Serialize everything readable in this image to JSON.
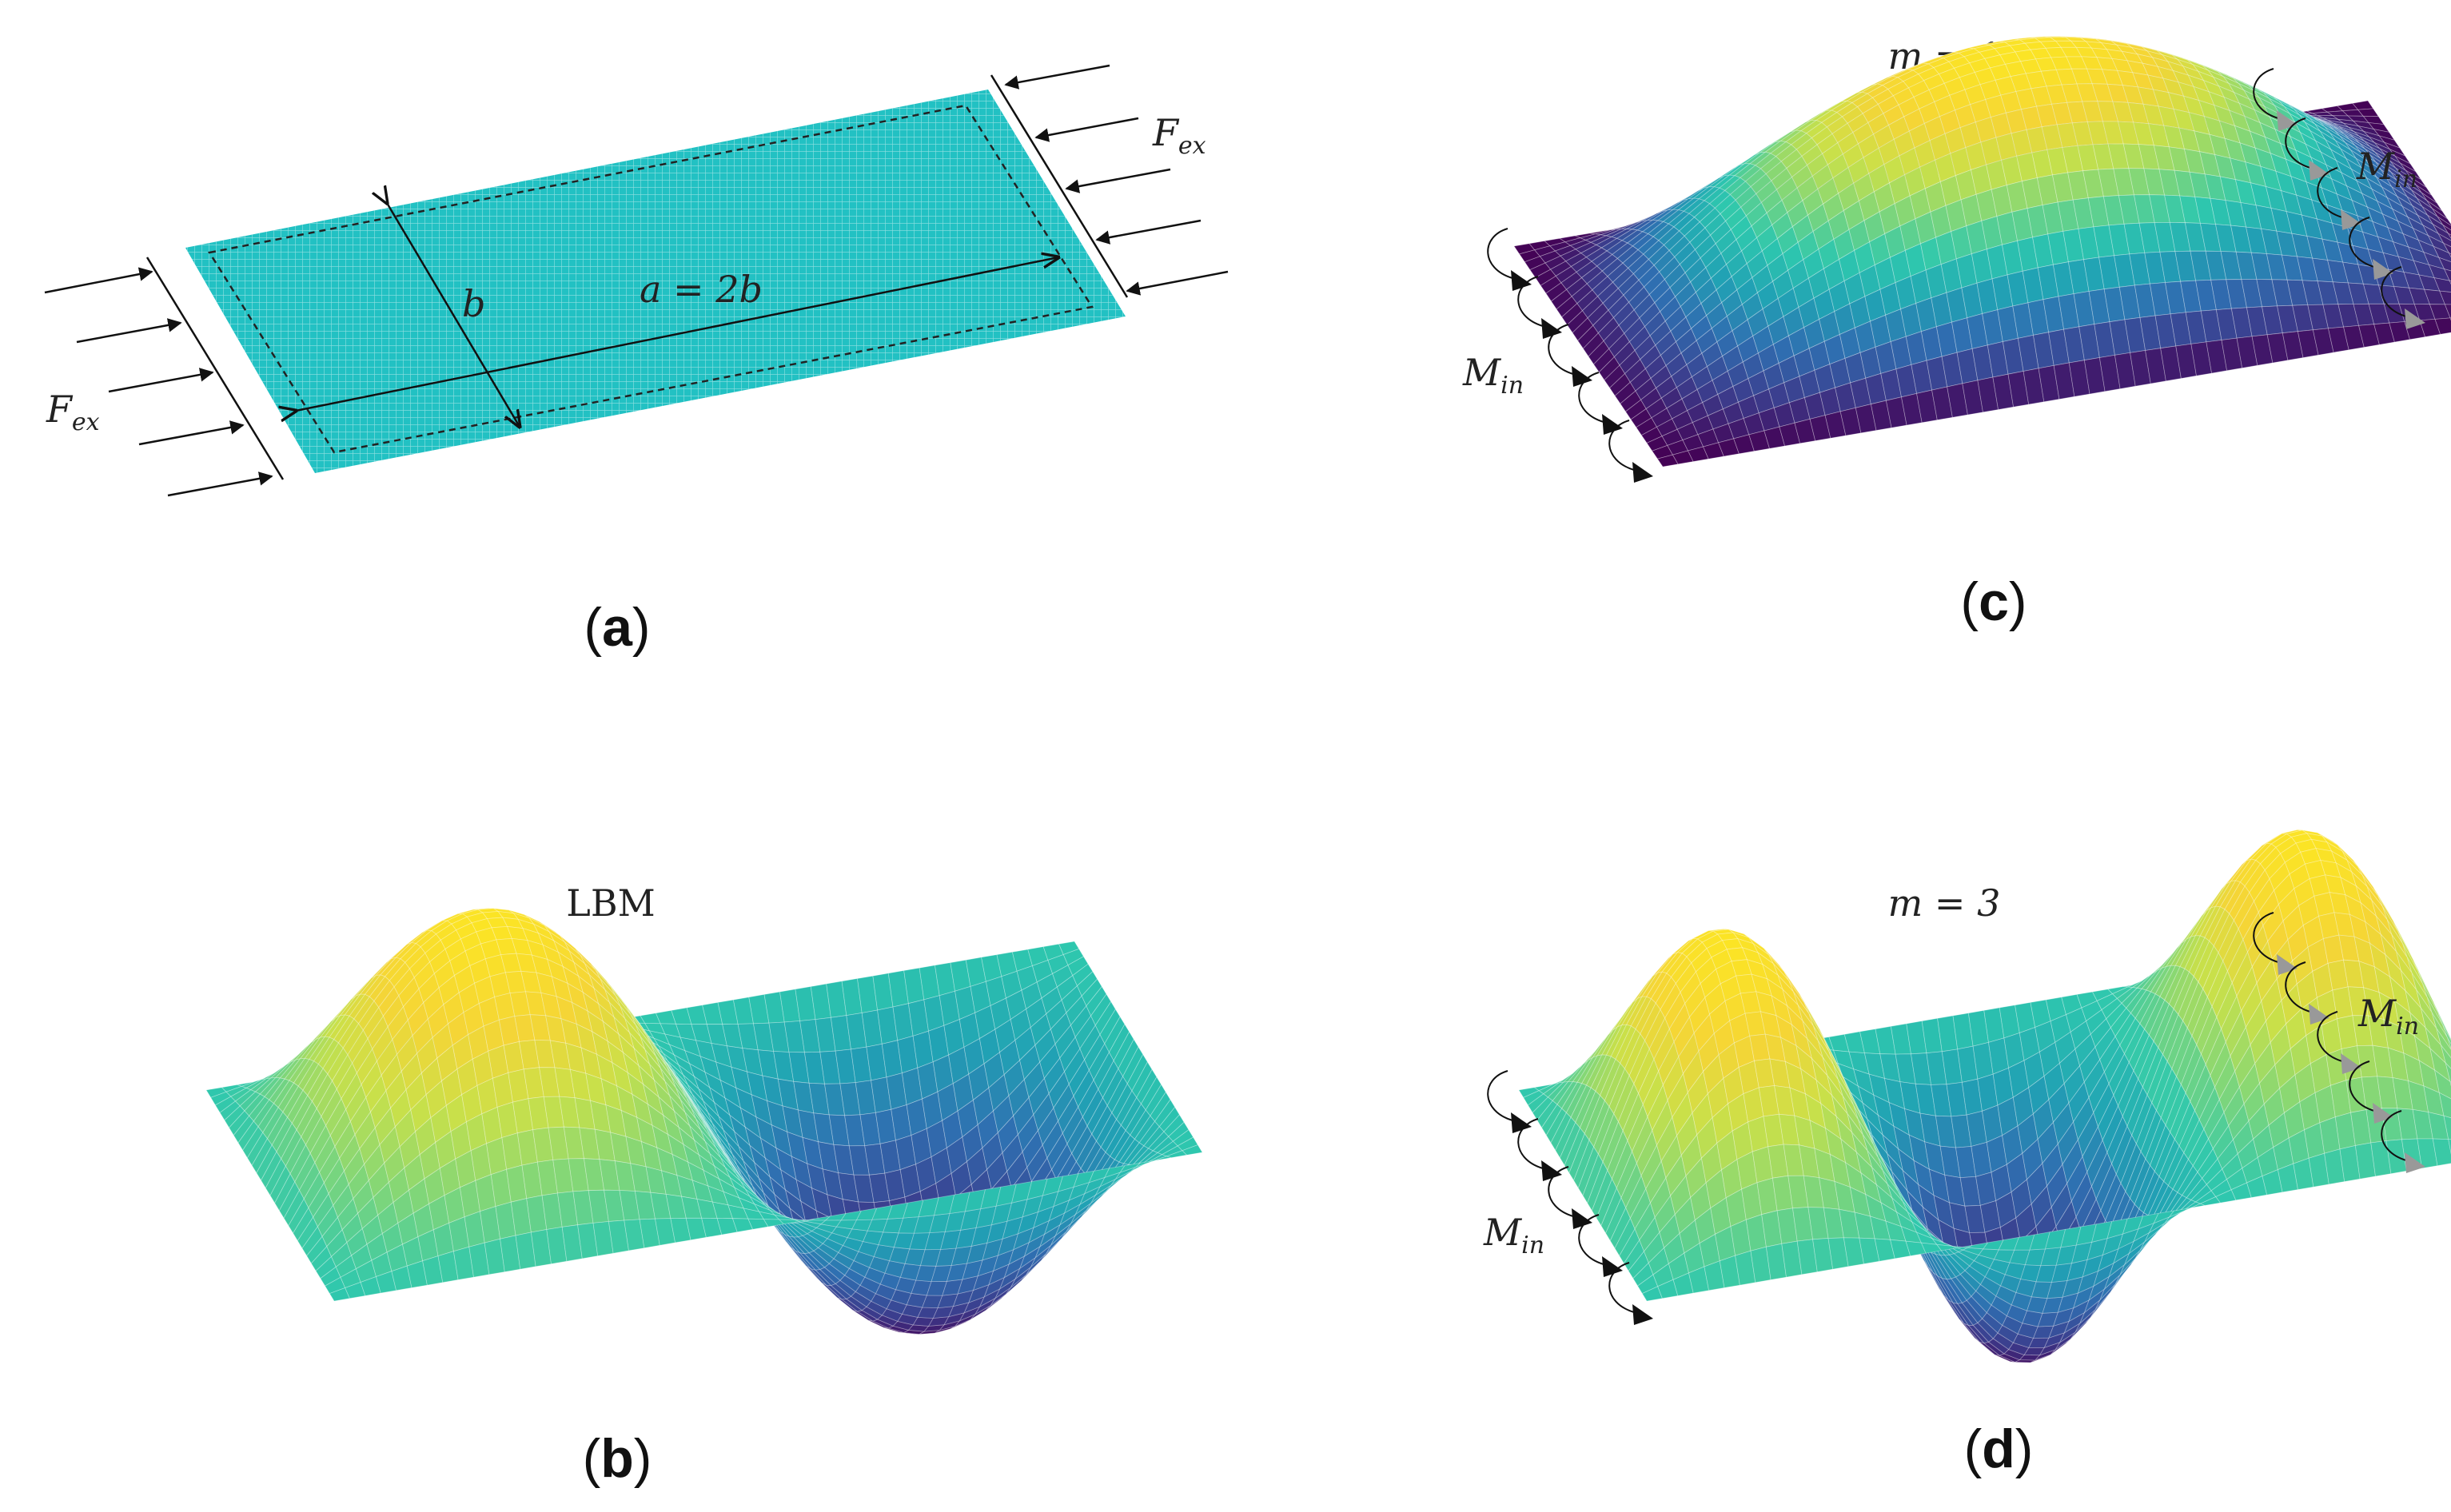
{
  "colors": {
    "plate": "#22c1c3",
    "ink": "#111111",
    "viridis": [
      "#440154",
      "#3b3e8e",
      "#2f6fb1",
      "#21a2b4",
      "#2ec7ae",
      "#7fd67a",
      "#c8e04a",
      "#f5d536",
      "#fbe425"
    ],
    "arrow_gray": "#999999"
  },
  "panels": {
    "a": {
      "caption_letter": "a",
      "force_label_left": {
        "base": "F",
        "sub": "ex"
      },
      "force_label_right": {
        "base": "F",
        "sub": "ex"
      },
      "dim_b": "b",
      "dim_a": "a = 2b"
    },
    "b": {
      "caption_letter": "b",
      "title": "LBM"
    },
    "c": {
      "caption_letter": "c",
      "title": "m = 1",
      "moment_label_left": {
        "base": "M",
        "sub": "in"
      },
      "moment_label_right": {
        "base": "M",
        "sub": "in"
      }
    },
    "d": {
      "caption_letter": "d",
      "title": "m = 3",
      "moment_label_left": {
        "base": "M",
        "sub": "in"
      },
      "moment_label_right": {
        "base": "M",
        "sub": "in"
      }
    }
  }
}
